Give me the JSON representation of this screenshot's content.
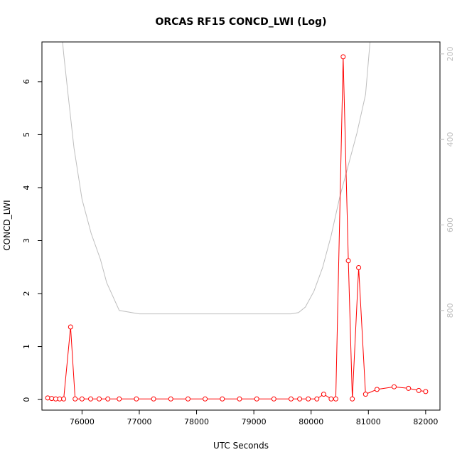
{
  "chart_data": {
    "type": "line",
    "title": "ORCAS RF15 CONCD_LWI (Log)",
    "xlabel": "UTC Seconds",
    "ylabel": "CONCD_LWI",
    "xlim": [
      75300,
      82250
    ],
    "ylim": [
      -0.2,
      6.75
    ],
    "xticks": [
      76000,
      77000,
      78000,
      79000,
      80000,
      81000,
      82000
    ],
    "yticks": [
      0,
      1,
      2,
      3,
      4,
      5,
      6
    ],
    "y2lim": [
      1033,
      172
    ],
    "y2ticks": [
      200,
      400,
      600,
      800
    ],
    "grid": false,
    "legend": "none",
    "colors": {
      "concd": "#ff0000",
      "secondary": "#bebebe"
    },
    "series": [
      {
        "style": "line+points",
        "color": "#ff0000",
        "x": [
          75400,
          75470,
          75540,
          75610,
          75680,
          75800,
          75880,
          76000,
          76150,
          76300,
          76450,
          76650,
          76950,
          77250,
          77550,
          77850,
          78150,
          78450,
          78750,
          79050,
          79350,
          79650,
          79800,
          79950,
          80100,
          80220,
          80350,
          80430,
          80560,
          80650,
          80720,
          80830,
          80950,
          81150,
          81450,
          81700,
          81880,
          82000
        ],
        "y": [
          0.03,
          0.02,
          0.01,
          0.01,
          0.01,
          1.37,
          0.01,
          0.01,
          0.01,
          0.01,
          0.01,
          0.01,
          0.01,
          0.01,
          0.01,
          0.01,
          0.01,
          0.01,
          0.01,
          0.01,
          0.01,
          0.01,
          0.01,
          0.01,
          0.01,
          0.1,
          0.01,
          0.01,
          6.47,
          2.62,
          0.01,
          2.49,
          0.1,
          0.19,
          0.24,
          0.21,
          0.17,
          0.15
        ]
      },
      {
        "style": "line",
        "axis": "right",
        "color": "#bebebe",
        "x": [
          75610,
          75680,
          75760,
          75860,
          76000,
          76160,
          76320,
          76430,
          76650,
          77000,
          78000,
          79000,
          79500,
          79650,
          79780,
          79900,
          80050,
          80200,
          80350,
          80500,
          80650,
          80800,
          80950,
          81030
        ],
        "y": [
          100,
          200,
          300,
          420,
          540,
          620,
          680,
          735,
          800,
          808,
          808,
          808,
          808,
          808,
          805,
          792,
          755,
          700,
          625,
          535,
          460,
          385,
          295,
          170
        ]
      }
    ]
  }
}
